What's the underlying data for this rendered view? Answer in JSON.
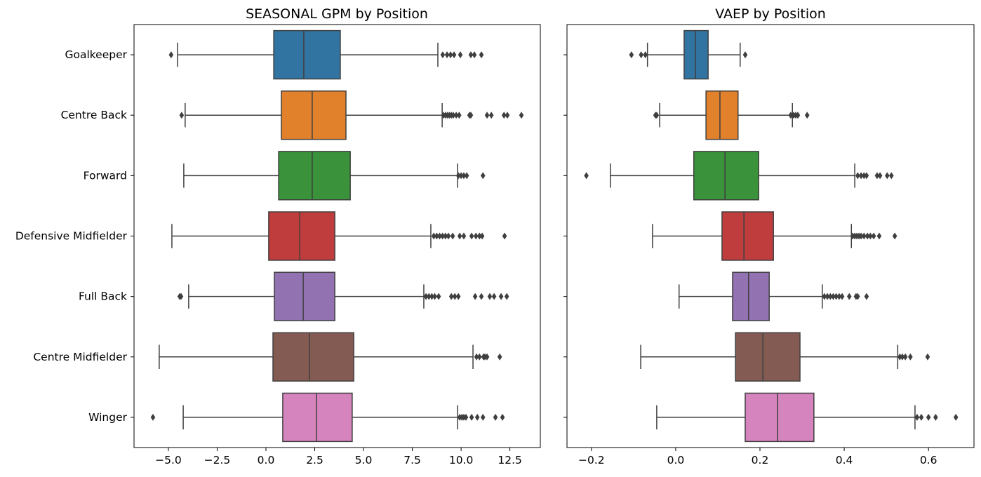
{
  "chart_data": [
    {
      "type": "boxplot",
      "orientation": "horizontal",
      "title": "SEASONAL GPM by Position",
      "xlabel": "",
      "ylabel": "",
      "xlim": [
        -6.76,
        14.06
      ],
      "xticks": [
        -5,
        -2.5,
        0,
        2.5,
        5,
        7.5,
        10,
        12.5
      ],
      "xtick_labels": [
        "−5.0",
        "−2.5",
        "0.0",
        "2.5",
        "5.0",
        "7.5",
        "10.0",
        "12.5"
      ],
      "show_category_labels": true,
      "grid": false,
      "categories": [
        "Goalkeeper",
        "Centre Back",
        "Forward",
        "Defensive Midfielder",
        "Full Back",
        "Centre Midfielder",
        "Winger"
      ],
      "colors": [
        "#3274a1",
        "#e1812c",
        "#3a923a",
        "#c03d3e",
        "#9372b2",
        "#845b53",
        "#d684bd"
      ],
      "boxes": [
        {
          "whisker_low": -4.53,
          "q1": 0.4,
          "median": 1.94,
          "q3": 3.81,
          "whisker_high": 8.81,
          "outliers": [
            -4.86,
            9.06,
            9.28,
            9.46,
            9.64,
            9.96,
            10.5,
            10.68,
            11.04
          ]
        },
        {
          "whisker_low": -4.14,
          "q1": 0.79,
          "median": 2.37,
          "q3": 4.1,
          "whisker_high": 9.03,
          "outliers": [
            -4.32,
            9.1,
            9.2,
            9.3,
            9.4,
            9.5,
            9.6,
            9.75,
            9.9,
            10.43,
            10.5,
            11.33,
            11.55,
            12.2,
            12.37,
            13.09
          ]
        },
        {
          "whisker_low": -4.21,
          "q1": 0.65,
          "median": 2.37,
          "q3": 4.32,
          "whisker_high": 9.82,
          "outliers": [
            9.86,
            10.0,
            10.14,
            10.29,
            11.12
          ]
        },
        {
          "whisker_low": -4.82,
          "q1": 0.14,
          "median": 1.73,
          "q3": 3.53,
          "whisker_high": 8.45,
          "outliers": [
            8.6,
            8.75,
            8.9,
            9.05,
            9.2,
            9.35,
            9.57,
            9.93,
            10.14,
            10.54,
            10.76,
            10.94,
            11.08,
            12.23
          ]
        },
        {
          "whisker_low": -3.96,
          "q1": 0.43,
          "median": 1.91,
          "q3": 3.53,
          "whisker_high": 8.09,
          "outliers": [
            -4.42,
            -4.35,
            8.2,
            8.35,
            8.5,
            8.65,
            8.85,
            9.5,
            9.68,
            9.86,
            10.72,
            11.04,
            11.47,
            11.69,
            12.05,
            12.34
          ]
        },
        {
          "whisker_low": -5.47,
          "q1": 0.36,
          "median": 2.23,
          "q3": 4.5,
          "whisker_high": 10.61,
          "outliers": [
            10.79,
            10.94,
            11.15,
            11.22,
            11.33,
            11.98
          ]
        },
        {
          "whisker_low": -4.24,
          "q1": 0.86,
          "median": 2.59,
          "q3": 4.42,
          "whisker_high": 9.82,
          "outliers": [
            -5.79,
            9.93,
            10.04,
            10.14,
            10.25,
            10.54,
            10.83,
            11.12,
            11.76,
            12.12
          ]
        }
      ]
    },
    {
      "type": "boxplot",
      "orientation": "horizontal",
      "title": "VAEP by Position",
      "xlabel": "",
      "ylabel": "",
      "xlim": [
        -0.258,
        0.708
      ],
      "xticks": [
        -0.2,
        0,
        0.2,
        0.4,
        0.6
      ],
      "xtick_labels": [
        "−0.2",
        "0.0",
        "0.2",
        "0.4",
        "0.6"
      ],
      "show_category_labels": false,
      "grid": false,
      "categories": [
        "Goalkeeper",
        "Centre Back",
        "Forward",
        "Defensive Midfielder",
        "Full Back",
        "Centre Midfielder",
        "Winger"
      ],
      "colors": [
        "#3274a1",
        "#e1812c",
        "#3a923a",
        "#c03d3e",
        "#9372b2",
        "#845b53",
        "#d684bd"
      ],
      "boxes": [
        {
          "whisker_low": -0.067,
          "q1": 0.02,
          "median": 0.047,
          "q3": 0.077,
          "whisker_high": 0.153,
          "outliers": [
            -0.105,
            -0.082,
            -0.072,
            0.165
          ]
        },
        {
          "whisker_low": -0.038,
          "q1": 0.072,
          "median": 0.105,
          "q3": 0.148,
          "whisker_high": 0.277,
          "outliers": [
            -0.048,
            -0.045,
            0.273,
            0.28,
            0.285,
            0.29,
            0.312
          ]
        },
        {
          "whisker_low": -0.155,
          "q1": 0.043,
          "median": 0.117,
          "q3": 0.197,
          "whisker_high": 0.425,
          "outliers": [
            -0.212,
            0.432,
            0.44,
            0.447,
            0.453,
            0.478,
            0.485,
            0.502,
            0.512
          ]
        },
        {
          "whisker_low": -0.055,
          "q1": 0.11,
          "median": 0.162,
          "q3": 0.232,
          "whisker_high": 0.417,
          "outliers": [
            0.42,
            0.425,
            0.43,
            0.435,
            0.44,
            0.447,
            0.455,
            0.462,
            0.47,
            0.483,
            0.52
          ]
        },
        {
          "whisker_low": 0.008,
          "q1": 0.135,
          "median": 0.173,
          "q3": 0.222,
          "whisker_high": 0.348,
          "outliers": [
            0.353,
            0.36,
            0.367,
            0.374,
            0.381,
            0.388,
            0.395,
            0.412,
            0.428,
            0.432,
            0.453
          ]
        },
        {
          "whisker_low": -0.083,
          "q1": 0.142,
          "median": 0.207,
          "q3": 0.295,
          "whisker_high": 0.527,
          "outliers": [
            0.532,
            0.538,
            0.545,
            0.557,
            0.598
          ]
        },
        {
          "whisker_low": -0.045,
          "q1": 0.165,
          "median": 0.242,
          "q3": 0.328,
          "whisker_high": 0.568,
          "outliers": [
            0.573,
            0.583,
            0.6,
            0.617,
            0.665
          ]
        }
      ]
    }
  ]
}
